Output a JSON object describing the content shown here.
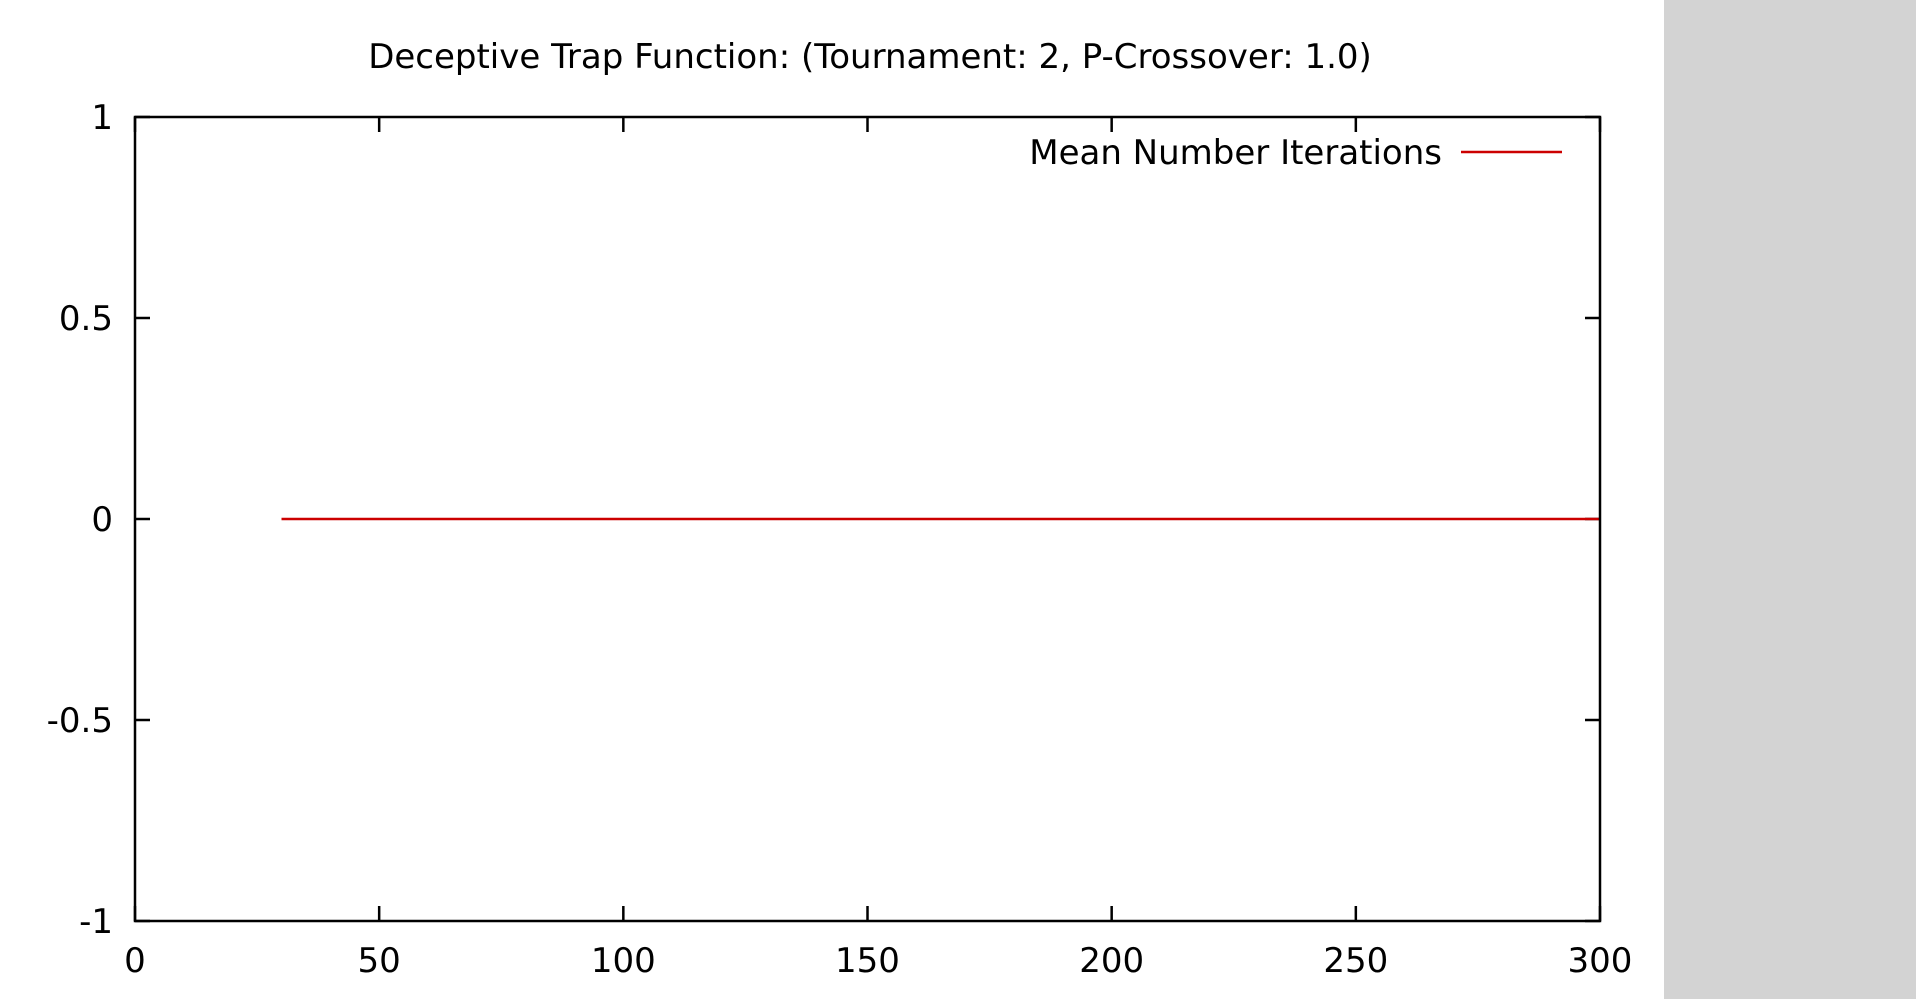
{
  "chart_data": {
    "type": "line",
    "title": "Deceptive Trap Function:  (Tournament: 2, P-Crossover: 1.0)",
    "xlabel": "",
    "ylabel": "",
    "xlim": [
      0,
      300
    ],
    "ylim": [
      -1,
      1
    ],
    "x_ticks": [
      0,
      50,
      100,
      150,
      200,
      250,
      300
    ],
    "x_tick_labels": [
      "0",
      "50",
      "100",
      "150",
      "200",
      "250",
      "300"
    ],
    "y_ticks": [
      -1,
      -0.5,
      0,
      0.5,
      1
    ],
    "y_tick_labels": [
      "-1",
      "-0.5",
      "0",
      "0.5",
      "1"
    ],
    "grid": false,
    "legend_position": "top-right",
    "series": [
      {
        "name": "Mean Number Iterations",
        "color": "#cc0000",
        "x": [
          30,
          300
        ],
        "y": [
          0,
          0
        ]
      }
    ]
  },
  "colors": {
    "background": "#ffffff",
    "side_panel": "#d3d3d3",
    "axis": "#000000",
    "series": "#cc0000"
  }
}
